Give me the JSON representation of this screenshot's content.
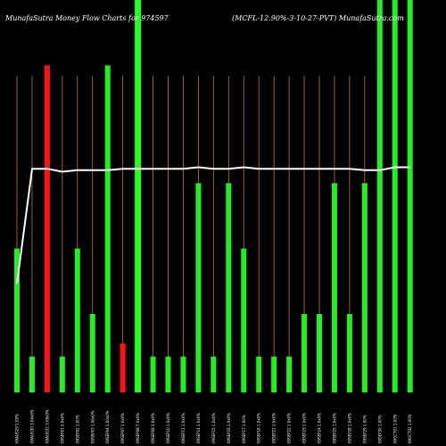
{
  "header": {
    "left": "MunafaSutra  Money Flow  Charts for 974597",
    "right": "(MCFL-12.90%-3-10-27-PVT) MunafaSutra.com"
  },
  "colors": {
    "background": "#000000",
    "gridline": "#c8780a",
    "up": "#22ee22",
    "down": "#ff1111",
    "line": "#ffffff",
    "highlight": "#22ff22"
  },
  "chart_data": {
    "type": "bar",
    "title": "",
    "xlabel": "",
    "ylabel": "",
    "grid": true,
    "highlight_index": 8,
    "ylim": [
      0,
      6
    ],
    "categories": [
      "09AUG29 1.00%",
      "09AUG30 3.04x0%",
      "09AUG31 3.09x0%",
      "09SEP01 3.0x0%",
      "09SEP02 1.00%",
      "09SEP03 1.06x0%",
      "09SEP04 1.00x0%",
      "09SEP07 1.0x0%",
      "09SEP08 7.0x0%",
      "09SEP09 3.0x0%",
      "09SEP10 1.0x0%",
      "09SEP11 1.0x0%",
      "09SEP14 1.0x0%",
      "09SEP15 1.0x0%",
      "09SEP16 1.0x0%",
      "09SEP17 1.00%",
      "09SEP18 1.0x0%",
      "09SEP21 1.0x0%",
      "09SEP22 1.0x0%",
      "09SEP23 1.0x0%",
      "09SEP24 1.0x0%",
      "09SEP25 1.0x0%",
      "09SEP28 1.0x0%",
      "09SEP29 1.00%",
      "09SEP30 1.00%",
      "09OCT01 1.00%",
      "09OCT02 1.00%"
    ],
    "values": [
      2.2,
      0.55,
      5,
      0.55,
      2.2,
      1.2,
      5,
      0.75,
      6,
      0.55,
      0.55,
      0.55,
      3.2,
      0.55,
      3.2,
      2.2,
      0.55,
      0.55,
      0.55,
      1.2,
      1.2,
      3.2,
      1.2,
      3.2,
      6,
      6,
      6
    ],
    "directions": [
      "up",
      "up",
      "down",
      "up",
      "up",
      "up",
      "up",
      "down",
      "up",
      "up",
      "up",
      "up",
      "up",
      "up",
      "up",
      "up",
      "up",
      "up",
      "up",
      "up",
      "up",
      "up",
      "up",
      "up",
      "up",
      "up",
      "up"
    ],
    "series": [
      {
        "values": [
          3.7,
          7.6,
          7.6,
          7.5,
          7.55,
          7.55,
          7.55,
          7.6,
          7.6,
          7.6,
          7.6,
          7.6,
          7.65,
          7.6,
          7.6,
          7.65,
          7.6,
          7.6,
          7.6,
          7.6,
          7.6,
          7.6,
          7.6,
          7.55,
          7.55,
          7.65,
          7.65
        ]
      }
    ]
  }
}
